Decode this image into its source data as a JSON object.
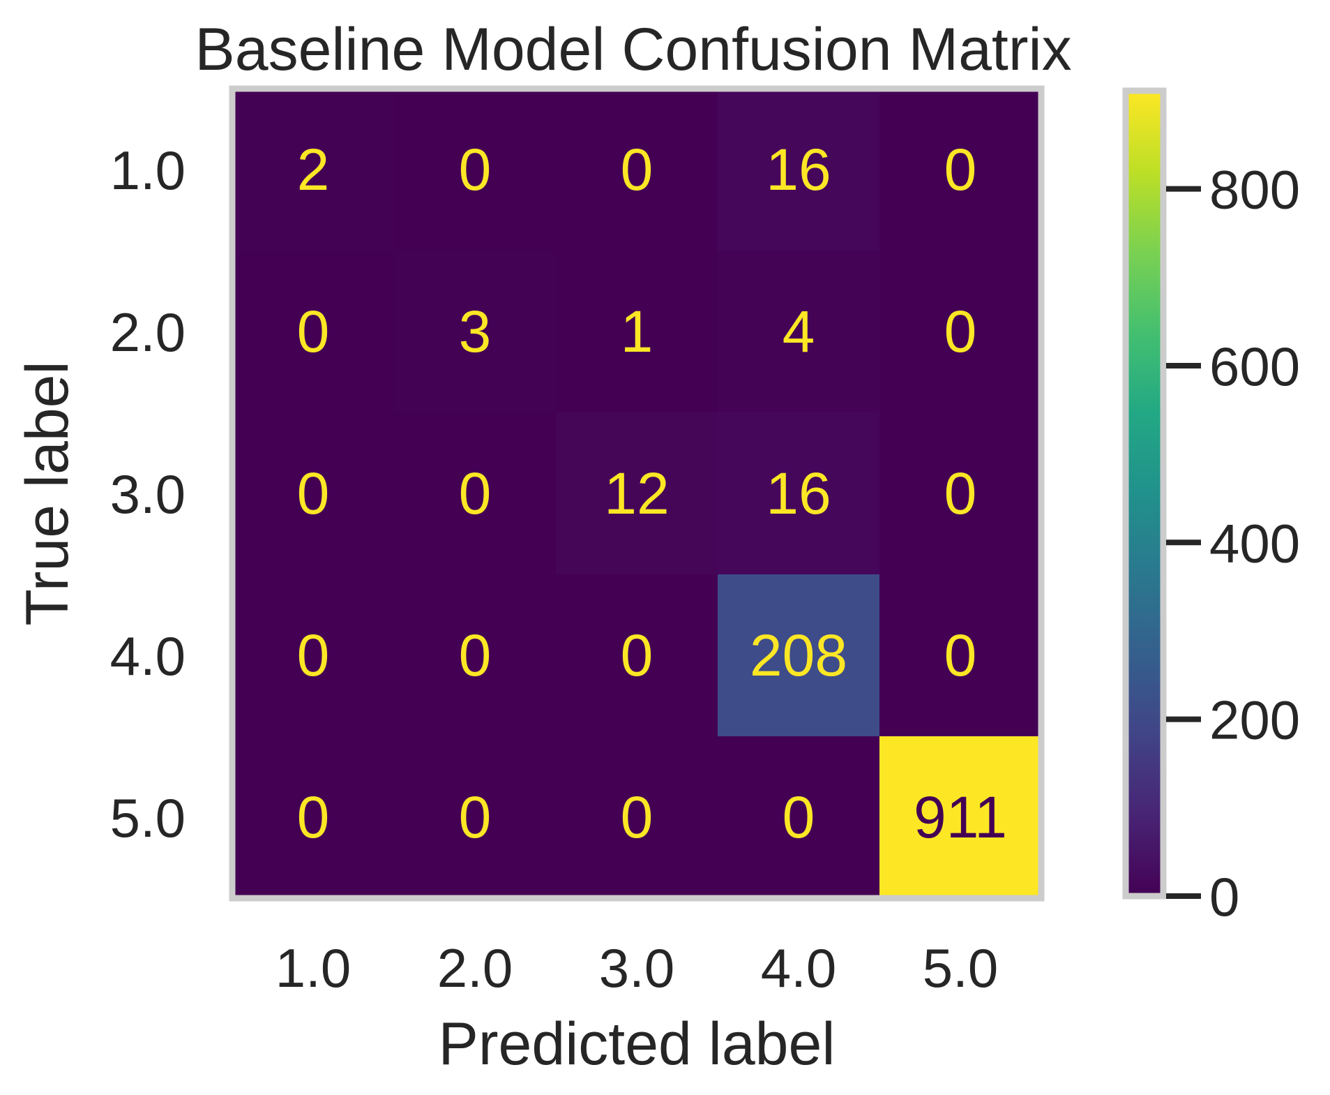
{
  "chart_data": {
    "type": "heatmap",
    "title": "Baseline Model Confusion Matrix",
    "xlabel": "Predicted label",
    "ylabel": "True label",
    "x_categories": [
      "1.0",
      "2.0",
      "3.0",
      "4.0",
      "5.0"
    ],
    "y_categories": [
      "1.0",
      "2.0",
      "3.0",
      "4.0",
      "5.0"
    ],
    "matrix": [
      [
        2,
        0,
        0,
        16,
        0
      ],
      [
        0,
        3,
        1,
        4,
        0
      ],
      [
        0,
        0,
        12,
        16,
        0
      ],
      [
        0,
        0,
        0,
        208,
        0
      ],
      [
        0,
        0,
        0,
        0,
        911
      ]
    ],
    "colormap": "viridis",
    "value_range": [
      0,
      911
    ],
    "colorbar": {
      "ticks": [
        0,
        200,
        400,
        600,
        800
      ],
      "tick_labels": [
        "0",
        "200",
        "400",
        "600",
        "800"
      ]
    },
    "grid": false,
    "colors": {
      "low_text": "#fde725",
      "high_text": "#440154",
      "frame": "#cccccc"
    }
  }
}
